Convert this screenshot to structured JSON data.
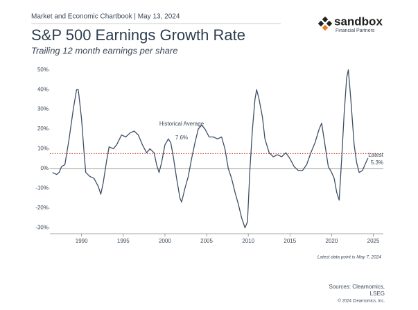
{
  "chart_data": {
    "type": "line",
    "header": "Market and Economic Chartbook | May 13, 2024",
    "title": "S&P 500 Earnings Growth Rate",
    "subtitle": "Trailing 12 month earnings per share",
    "brand": "sandbox",
    "brand_tagline": "Financial Partners",
    "note": "Latest data point is May 7, 2024",
    "sources": "Sources: Clearnomics,",
    "sources_2": "LSEG",
    "copyright": "© 2024 Clearnomics, Inc.",
    "x": [
      1986.5,
      1987.0,
      1987.3,
      1987.6,
      1988.0,
      1988.5,
      1989.0,
      1989.4,
      1989.6,
      1990.0,
      1990.3,
      1990.5,
      1991.0,
      1991.5,
      1992.0,
      1992.3,
      1992.6,
      1993.0,
      1993.3,
      1993.8,
      1994.2,
      1994.8,
      1995.3,
      1995.8,
      1996.3,
      1996.8,
      1997.3,
      1997.8,
      1998.2,
      1998.7,
      1999.0,
      1999.3,
      1999.6,
      2000.0,
      2000.4,
      2000.7,
      2001.0,
      2001.4,
      2001.8,
      2002.0,
      2002.4,
      2002.8,
      2003.2,
      2003.6,
      2004.0,
      2004.4,
      2004.8,
      2005.3,
      2005.8,
      2006.3,
      2006.8,
      2007.2,
      2007.6,
      2008.0,
      2008.4,
      2008.8,
      2009.2,
      2009.6,
      2009.9,
      2010.2,
      2010.5,
      2010.8,
      2011.0,
      2011.3,
      2011.7,
      2012.0,
      2012.5,
      2013.0,
      2013.5,
      2014.0,
      2014.5,
      2015.0,
      2015.5,
      2016.0,
      2016.5,
      2017.0,
      2017.5,
      2018.0,
      2018.5,
      2018.8,
      2019.2,
      2019.6,
      2020.0,
      2020.3,
      2020.6,
      2020.9,
      2021.2,
      2021.5,
      2021.8,
      2022.0,
      2022.3,
      2022.7,
      2023.0,
      2023.3,
      2023.7,
      2024.0,
      2024.35
    ],
    "series": [
      {
        "color": "#3d4f66",
        "values": [
          -2,
          -3,
          -2,
          1,
          2,
          15,
          30,
          40,
          40,
          25,
          8,
          -2,
          -4,
          -5,
          -9,
          -13,
          -7,
          4,
          11,
          10,
          12,
          17,
          16,
          18,
          19,
          17,
          12,
          8,
          10,
          8,
          2,
          -2,
          3,
          12,
          15,
          13,
          6,
          -5,
          -15,
          -17,
          -10,
          -4,
          5,
          13,
          20,
          22,
          20,
          16,
          16,
          15,
          16,
          10,
          0,
          -5,
          -12,
          -18,
          -25,
          -30,
          -27,
          0,
          20,
          35,
          40,
          35,
          26,
          15,
          8,
          6,
          7,
          6,
          8,
          5,
          1,
          -1,
          -1,
          2,
          8,
          13,
          20,
          23,
          12,
          1,
          -2,
          -5,
          -12,
          -16,
          5,
          28,
          46,
          50,
          35,
          12,
          3,
          -2,
          -1,
          2,
          5.3
        ]
      }
    ],
    "average": {
      "label": "Historical Average",
      "value": 7.6,
      "value_label": "7.6%",
      "color": "#c0392b"
    },
    "latest": {
      "label": "Latest",
      "value": 5.3,
      "value_label": "5.3%"
    },
    "xlim": [
      1986.2,
      2026.2
    ],
    "xticks": [
      1990,
      1995,
      2000,
      2005,
      2010,
      2015,
      2020,
      2025
    ],
    "ylim": [
      -33,
      52
    ],
    "yticks": [
      {
        "value": 50,
        "label": "50%"
      },
      {
        "value": 40,
        "label": "40%"
      },
      {
        "value": 30,
        "label": "30%"
      },
      {
        "value": 20,
        "label": "20%"
      },
      {
        "value": 10,
        "label": "10%"
      },
      {
        "value": 0,
        "label": "0%"
      },
      {
        "value": -10,
        "label": "-10%"
      },
      {
        "value": -20,
        "label": "-20%"
      },
      {
        "value": -30,
        "label": "-30%"
      }
    ]
  }
}
